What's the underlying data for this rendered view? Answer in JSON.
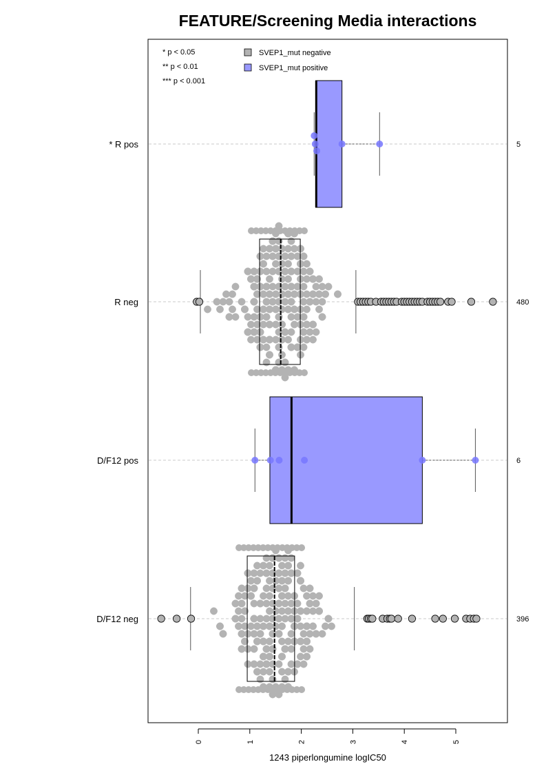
{
  "chart_data": {
    "type": "boxplot",
    "title": "FEATURE/Screening Media interactions",
    "xlabel": "1243 piperlongumine logIC50",
    "xlim": [
      -1.0,
      6.0
    ],
    "x_ticks": [
      "0",
      "1",
      "2",
      "3",
      "4",
      "5"
    ],
    "orientation": "horizontal",
    "grid": "dashed lines at each group",
    "significance_legend": [
      "* p < 0.05",
      "** p < 0.01",
      "*** p < 0.001"
    ],
    "legend": [
      {
        "label": "SVEP1_mut negative",
        "color": "#b3b3b3"
      },
      {
        "label": "SVEP1_mut positive",
        "color": "#9999ff"
      }
    ],
    "groups": [
      {
        "label": "* R pos",
        "count": "5",
        "series": "SVEP1_mut positive",
        "box": {
          "q1": 2.28,
          "median": 2.29,
          "q3": 2.79,
          "whisker_low": 2.25,
          "whisker_high": 3.52
        },
        "points": [
          2.25,
          2.27,
          2.3,
          2.79,
          3.52
        ]
      },
      {
        "label": "R neg",
        "count": "480",
        "series": "SVEP1_mut negative",
        "box": {
          "q1": 1.19,
          "median": 1.6,
          "q3": 1.98,
          "whisker_low": 0.04,
          "whisker_high": 3.06
        },
        "outliers": [
          -0.03,
          0.02,
          3.1,
          3.15,
          3.2,
          3.25,
          3.3,
          3.35,
          3.45,
          3.55,
          3.6,
          3.65,
          3.7,
          3.75,
          3.8,
          3.85,
          3.95,
          4.0,
          4.05,
          4.1,
          4.15,
          4.2,
          4.25,
          4.3,
          4.35,
          4.45,
          4.5,
          4.55,
          4.6,
          4.65,
          4.7,
          4.85,
          4.92,
          5.3,
          5.72
        ]
      },
      {
        "label": "D/F12 pos",
        "count": "6",
        "series": "SVEP1_mut positive",
        "box": {
          "q1": 1.39,
          "median": 1.81,
          "q3": 4.35,
          "whisker_low": 1.1,
          "whisker_high": 5.38
        },
        "points": [
          1.1,
          1.4,
          1.57,
          2.06,
          4.35,
          5.38
        ]
      },
      {
        "label": "D/F12 neg",
        "count": "396",
        "series": "SVEP1_mut negative",
        "box": {
          "q1": 0.95,
          "median": 1.48,
          "q3": 1.87,
          "whisker_low": -0.15,
          "whisker_high": 3.03
        },
        "outliers": [
          -0.72,
          -0.42,
          -0.14,
          3.28,
          3.31,
          3.35,
          3.38,
          3.58,
          3.67,
          3.72,
          3.75,
          3.88,
          4.15,
          4.6,
          4.75,
          4.98,
          5.2,
          5.28,
          5.35,
          5.4
        ]
      }
    ]
  }
}
